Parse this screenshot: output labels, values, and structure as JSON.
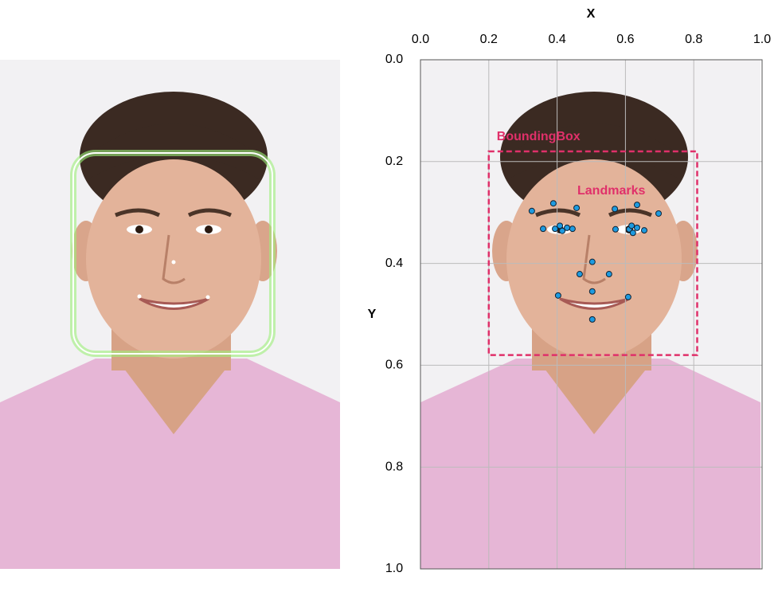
{
  "plot": {
    "x_label": "X",
    "y_label": "Y",
    "xlim": [
      0,
      1
    ],
    "ylim": [
      0,
      1
    ],
    "xticks": [
      {
        "value": 0,
        "label": "0.0"
      },
      {
        "value": 0.2,
        "label": "0.2"
      },
      {
        "value": 0.4,
        "label": "0.4"
      },
      {
        "value": 0.6,
        "label": "0.6"
      },
      {
        "value": 0.8,
        "label": "0.8"
      },
      {
        "value": 1,
        "label": "1.0"
      }
    ],
    "yticks": [
      {
        "value": 0,
        "label": "0.0"
      },
      {
        "value": 0.2,
        "label": "0.2"
      },
      {
        "value": 0.4,
        "label": "0.4"
      },
      {
        "value": 0.6,
        "label": "0.6"
      },
      {
        "value": 0.8,
        "label": "0.8"
      },
      {
        "value": 1,
        "label": "1.0"
      }
    ],
    "bounding_box": {
      "label": "BoundingBox",
      "x": [
        0.2,
        0.81
      ],
      "y": [
        0.18,
        0.58
      ],
      "color": "#e0306a"
    },
    "landmarks": {
      "label": "Landmarks",
      "color": "#1e9be0",
      "x": [
        0.326,
        0.389,
        0.457,
        0.359,
        0.394,
        0.408,
        0.415,
        0.429,
        0.445,
        0.569,
        0.634,
        0.697,
        0.571,
        0.611,
        0.618,
        0.622,
        0.634,
        0.655,
        0.503,
        0.466,
        0.552,
        0.503,
        0.403,
        0.608,
        0.503
      ],
      "y": [
        0.297,
        0.282,
        0.291,
        0.332,
        0.332,
        0.326,
        0.336,
        0.33,
        0.332,
        0.293,
        0.285,
        0.302,
        0.333,
        0.333,
        0.326,
        0.34,
        0.33,
        0.335,
        0.397,
        0.421,
        0.421,
        0.455,
        0.463,
        0.466,
        0.51
      ]
    }
  }
}
